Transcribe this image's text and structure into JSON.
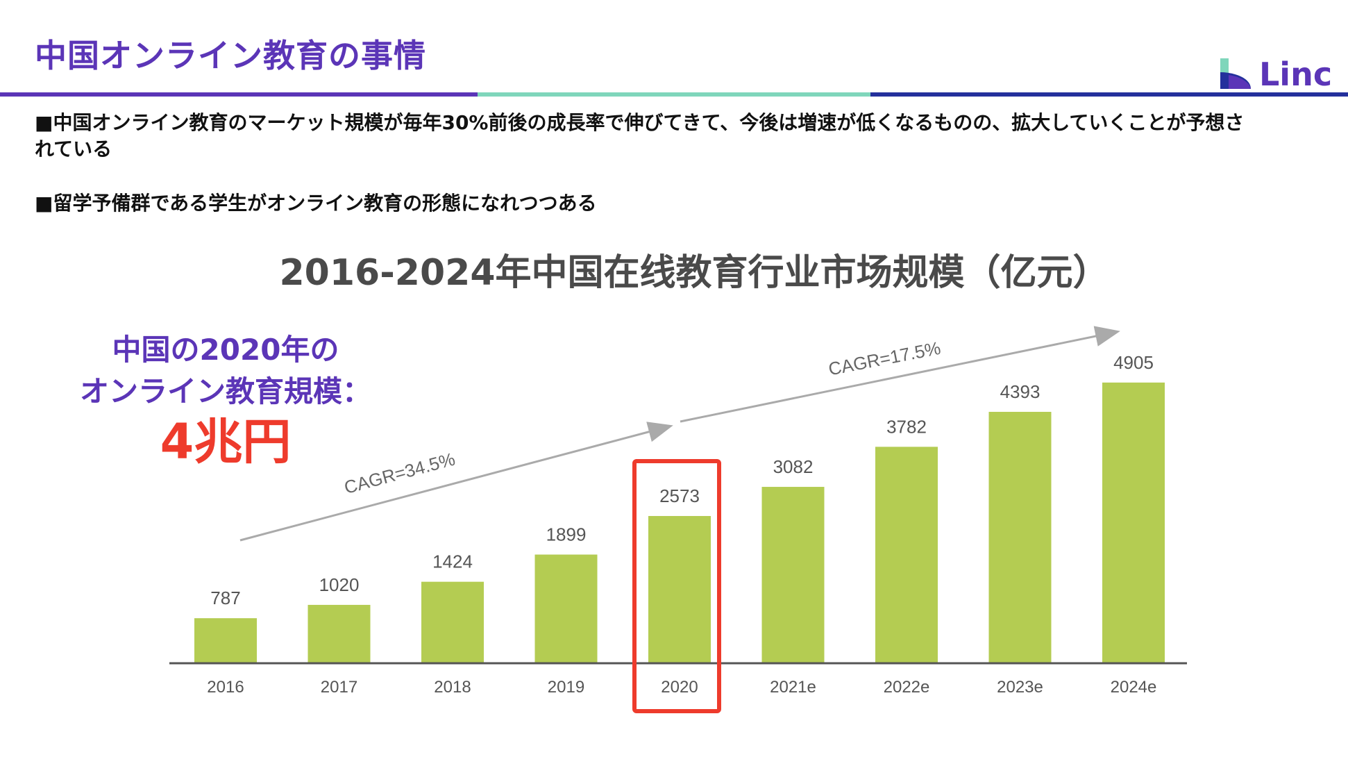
{
  "header": {
    "title": "中国オンライン教育の事情",
    "logo_text": "Linc"
  },
  "bullets": [
    "■中国オンライン教育のマーケット規模が毎年30%前後の成長率で伸びてきて、今後は増速が低くなるものの、拡大していくことが予想されている",
    "■留学予備群である学生がオンライン教育の形態になれつつある"
  ],
  "callout": {
    "line1": "中国の2020年の",
    "line2": "オンライン教育規模：",
    "value": "4兆円"
  },
  "colors": {
    "accent_purple": "#5b35b7",
    "accent_mint": "#7fd6bb",
    "accent_navy": "#24309c",
    "bar_green": "#b4cc52",
    "highlight_red": "#ee3b2c"
  },
  "chart_data": {
    "type": "bar",
    "title": "2016-2024年中国在线教育行业市场规模（亿元）",
    "categories": [
      "2016",
      "2017",
      "2018",
      "2019",
      "2020",
      "2021e",
      "2022e",
      "2023e",
      "2024e"
    ],
    "values": [
      787,
      1020,
      1424,
      1899,
      2573,
      3082,
      3782,
      4393,
      4905
    ],
    "ylim": [
      0,
      5000
    ],
    "highlight_category": "2020",
    "annotations": [
      {
        "text": "CAGR=34.5%"
      },
      {
        "text": "CAGR=17.5%"
      }
    ],
    "grid": false,
    "legend": "none"
  }
}
